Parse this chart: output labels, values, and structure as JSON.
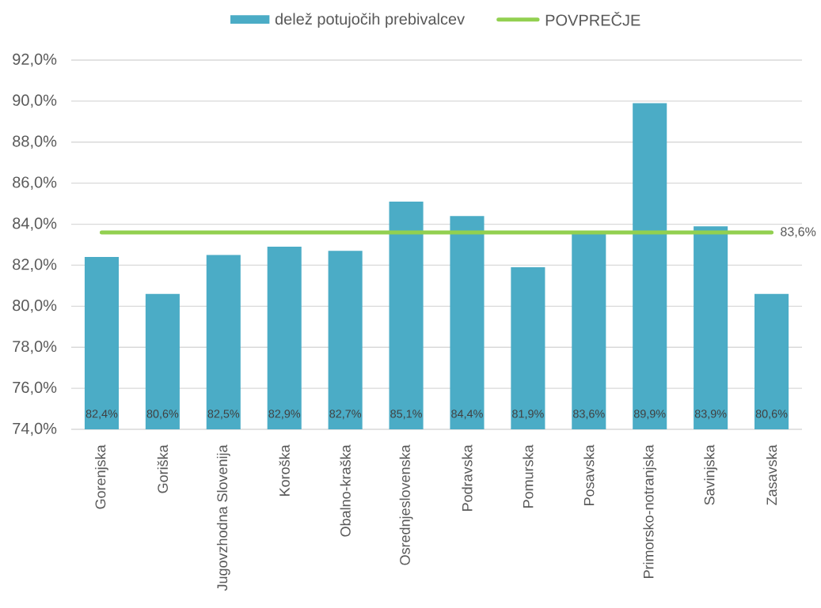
{
  "chart_data": {
    "type": "bar",
    "categories": [
      "Gorenjska",
      "Goriška",
      "Jugovzhodna Slovenija",
      "Koroška",
      "Obalno-kraška",
      "Osrednjeslovenska",
      "Podravska",
      "Pomurska",
      "Posavska",
      "Primorsko-notranjska",
      "Savinjska",
      "Zasavska"
    ],
    "series": [
      {
        "name": "delež potujočih prebivalcev",
        "color": "#4bacc6",
        "values": [
          82.4,
          80.6,
          82.5,
          82.9,
          82.7,
          85.1,
          84.4,
          81.9,
          83.6,
          89.9,
          83.9,
          80.6
        ],
        "value_labels": [
          "82,4%",
          "80,6%",
          "82,5%",
          "82,9%",
          "82,7%",
          "85,1%",
          "84,4%",
          "81,9%",
          "83,6%",
          "89,9%",
          "83,9%",
          "80,6%"
        ]
      },
      {
        "name": "POVPREČJE",
        "type": "line",
        "color": "#92d050",
        "values": [
          83.6,
          83.6,
          83.6,
          83.6,
          83.6,
          83.6,
          83.6,
          83.6,
          83.6,
          83.6,
          83.6,
          83.6
        ],
        "value_labels": [
          null,
          null,
          null,
          null,
          null,
          null,
          null,
          null,
          null,
          null,
          null,
          "83,6%"
        ]
      }
    ],
    "ylim": [
      74,
      92
    ],
    "yticks": [
      {
        "value": 74,
        "label": "74,0%"
      },
      {
        "value": 76,
        "label": "76,0%"
      },
      {
        "value": 78,
        "label": "78,0%"
      },
      {
        "value": 80,
        "label": "80,0%"
      },
      {
        "value": 82,
        "label": "82,0%"
      },
      {
        "value": 84,
        "label": "84,0%"
      },
      {
        "value": 86,
        "label": "86,0%"
      },
      {
        "value": 88,
        "label": "88,0%"
      },
      {
        "value": 90,
        "label": "90,0%"
      },
      {
        "value": 92,
        "label": "92,0%"
      }
    ],
    "grid": "y",
    "legend": "top"
  }
}
